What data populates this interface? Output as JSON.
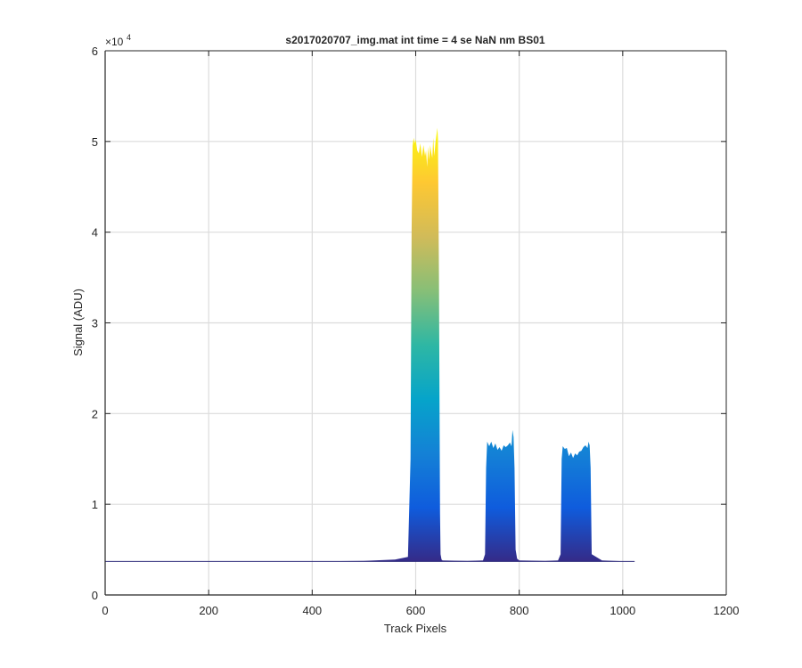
{
  "chart_data": {
    "type": "area",
    "title": "s2017020707_img.mat int time = 4 se  NaN nm BS01",
    "xlabel": "Track Pixels",
    "ylabel": "Signal (ADU)",
    "y_exponent_base": "×10",
    "y_exponent_power": "4",
    "xlim": [
      0,
      1200
    ],
    "ylim": [
      0,
      60000
    ],
    "x_ticks": [
      0,
      200,
      400,
      600,
      800,
      1000,
      1200
    ],
    "x_tick_labels": [
      "0",
      "200",
      "400",
      "600",
      "800",
      "1000",
      "1200"
    ],
    "y_ticks": [
      0,
      10000,
      20000,
      30000,
      40000,
      50000,
      60000
    ],
    "y_tick_labels": [
      "0",
      "1",
      "2",
      "3",
      "4",
      "5",
      "6"
    ],
    "grid": true,
    "baseline": 3700,
    "colormap": "parula",
    "colormap_stops": [
      "#352a87",
      "#0f5cdd",
      "#1481d6",
      "#06a4ca",
      "#2eb7a4",
      "#87bf77",
      "#d1bb59",
      "#fec832",
      "#f9fb0e"
    ],
    "series": [
      {
        "x": [
          0,
          100,
          200,
          300,
          400,
          500,
          560,
          585,
          590,
          592,
          594,
          596,
          598,
          600,
          603,
          606,
          609,
          612,
          615,
          618,
          620,
          622,
          624,
          626,
          628,
          630,
          632,
          634,
          636,
          638,
          640,
          642,
          643,
          645,
          647,
          648,
          650,
          652,
          700,
          730,
          734,
          736,
          738,
          742,
          746,
          750,
          754,
          758,
          762,
          766,
          770,
          774,
          778,
          782,
          785,
          787,
          789,
          791,
          793,
          796,
          800,
          850,
          875,
          880,
          882,
          884,
          888,
          892,
          896,
          900,
          904,
          908,
          912,
          916,
          920,
          924,
          928,
          932,
          934,
          936,
          938,
          940,
          960,
          1000,
          1023
        ],
        "y": [
          3700,
          3700,
          3700,
          3700,
          3700,
          3750,
          3900,
          4200,
          15000,
          40000,
          49500,
          50400,
          49800,
          50200,
          49000,
          48700,
          49800,
          48300,
          49600,
          48400,
          49000,
          47200,
          49400,
          48000,
          49600,
          48800,
          48200,
          50400,
          48400,
          49800,
          50700,
          51500,
          50200,
          35000,
          9000,
          4500,
          3900,
          3800,
          3750,
          3800,
          4500,
          14000,
          16900,
          16400,
          16900,
          16200,
          16700,
          16000,
          16300,
          15900,
          16500,
          16300,
          16500,
          16800,
          16400,
          18200,
          17400,
          14000,
          5000,
          4000,
          3800,
          3750,
          3800,
          4500,
          15000,
          16400,
          16100,
          16200,
          15300,
          15700,
          15100,
          15600,
          15400,
          15800,
          15900,
          16300,
          16500,
          16200,
          16900,
          16500,
          14000,
          4500,
          3800,
          3720,
          3700
        ]
      }
    ]
  }
}
